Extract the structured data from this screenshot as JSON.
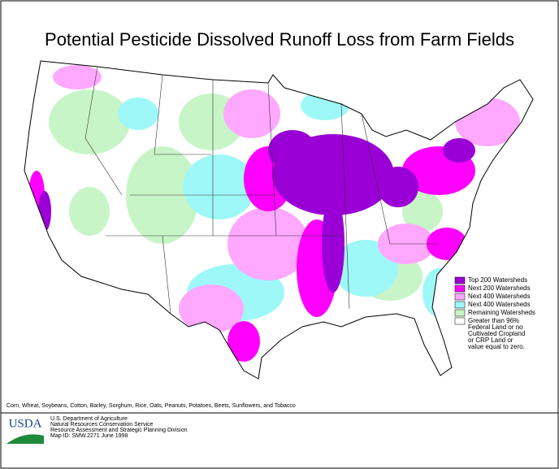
{
  "title": "Potential Pesticide Dissolved Runoff Loss from Farm Fields",
  "legend": [
    {
      "label": "Top 200 Watersheds",
      "color": "#9a00d6"
    },
    {
      "label": "Next 200 Watersheds",
      "color": "#ff00ff"
    },
    {
      "label": "Next 400 Watersheds",
      "color": "#ffa8ff"
    },
    {
      "label": "Next 400 Watersheds",
      "color": "#9ef8f8"
    },
    {
      "label": "Remaining Watersheds",
      "color": "#c8f5c8"
    },
    {
      "lines": [
        "Greater than 96%",
        "Federal Land or no",
        "Cultivated Cropland",
        "or CRP Land or",
        "value equal to zero."
      ],
      "color": "#ffffff"
    }
  ],
  "crops": "Corn, Wheat, Soybeans, Cotton, Barley, Sorghum, Rice, Oats, Peanuts, Potatoes, Beets, Sunflowers, and Tobacco",
  "logo": "USDA",
  "agency": [
    "U.S. Department of Agriculture",
    "Natural Resources Conservation Service",
    "Resource Assessment and Strategic Planning Division",
    "Map ID: SMW.2271      June 1998"
  ]
}
